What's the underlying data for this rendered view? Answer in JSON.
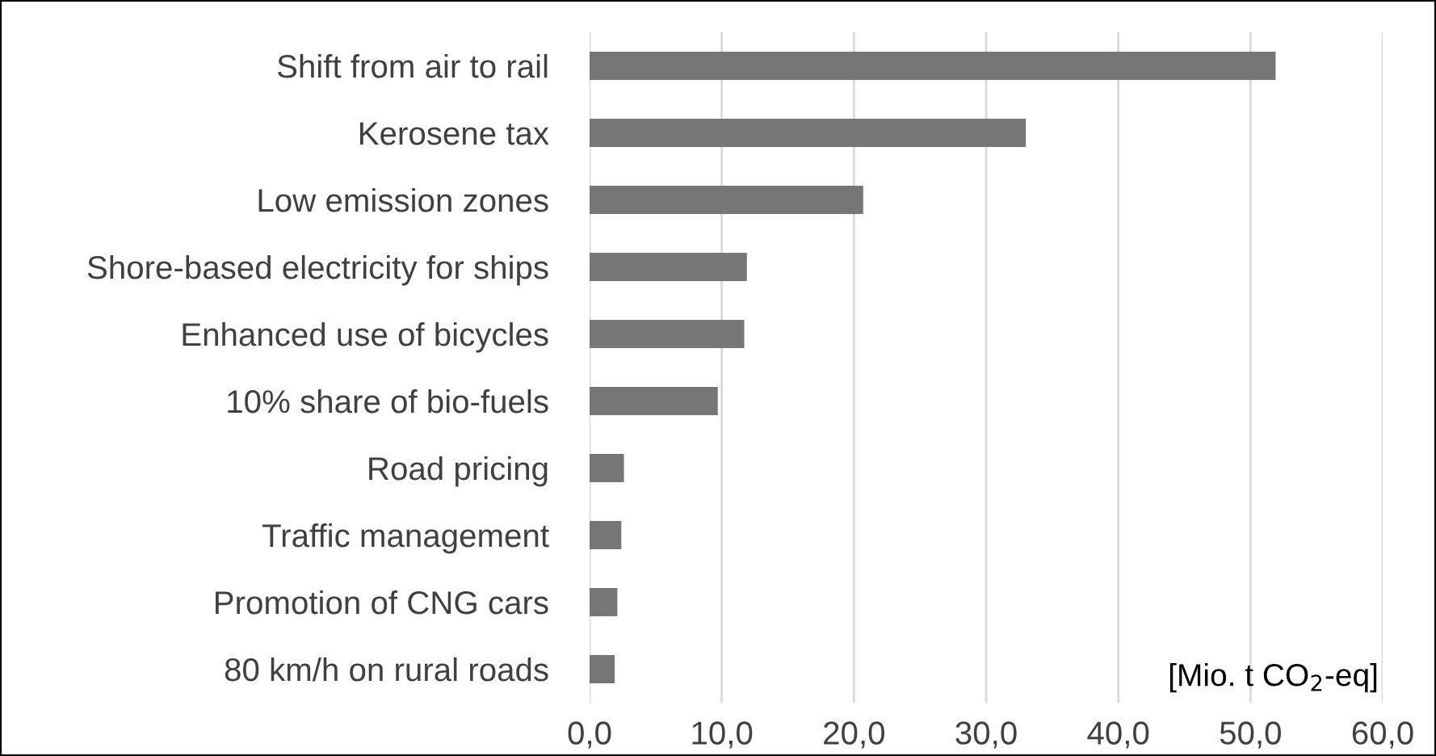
{
  "chart_data": {
    "type": "bar",
    "orientation": "horizontal",
    "categories": [
      "Shift from air to rail",
      "Kerosene tax",
      "Low emission zones",
      "Shore-based electricity for ships",
      "Enhanced use of bicycles",
      "10% share of bio-fuels",
      "Road pricing",
      "Traffic management",
      "Promotion of CNG cars",
      "80 km/h on rural roads"
    ],
    "values": [
      51.9,
      33.0,
      20.7,
      11.9,
      11.7,
      9.7,
      2.6,
      2.4,
      2.1,
      1.9
    ],
    "color": "#767676",
    "xlabel": "[Mio. t CO$_{2}$-eq]",
    "xlim": [
      0,
      60
    ],
    "xticks": [
      {
        "value": 0,
        "label": "0,0"
      },
      {
        "value": 10,
        "label": "10,0"
      },
      {
        "value": 20,
        "label": "20,0"
      },
      {
        "value": 30,
        "label": "30,0"
      },
      {
        "value": 40,
        "label": "40,0"
      },
      {
        "value": 50,
        "label": "50,0"
      },
      {
        "value": 60,
        "label": "60,0"
      }
    ],
    "grid": "x"
  }
}
